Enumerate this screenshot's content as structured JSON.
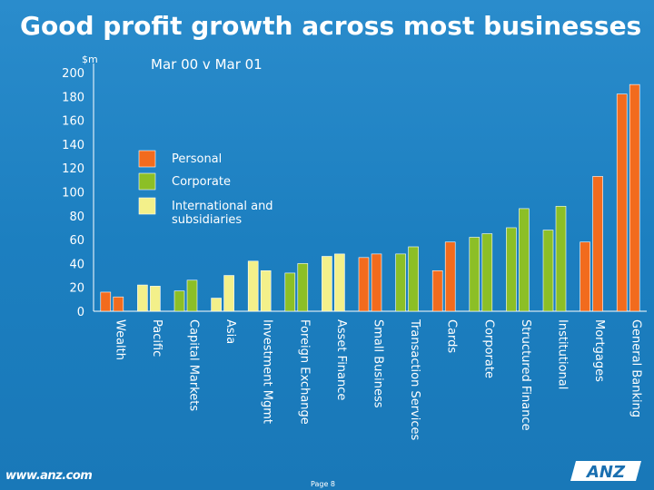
{
  "page": {
    "title": "Good profit growth across most businesses",
    "footer_url": "www.anz.com",
    "page_label": "Page 8",
    "logo_text": "ANZ"
  },
  "chart_data": {
    "type": "bar",
    "title": "Mar 00 v Mar 01",
    "ylabel": "$m",
    "ylim": [
      0,
      200
    ],
    "yticks": [
      0,
      20,
      40,
      60,
      80,
      100,
      120,
      140,
      160,
      180,
      200
    ],
    "grid": false,
    "legend_position": "top-left",
    "legend": [
      {
        "name": "Personal",
        "color": "#f26b1d"
      },
      {
        "name": "Corporate",
        "color": "#8cbf26"
      },
      {
        "name": "International and subsidiaries",
        "color": "#f3f08a"
      }
    ],
    "periods": [
      "Mar 00",
      "Mar 01"
    ],
    "categories": [
      {
        "name": "Wealth",
        "group": "Personal",
        "values": [
          16,
          12
        ]
      },
      {
        "name": "Pacific",
        "group": "International and subsidiaries",
        "values": [
          22,
          21
        ]
      },
      {
        "name": "Capital Markets",
        "group": "Corporate",
        "values": [
          17,
          26
        ]
      },
      {
        "name": "Asia",
        "group": "International and subsidiaries",
        "values": [
          11,
          30
        ]
      },
      {
        "name": "Investment Mgmt",
        "group": "International and subsidiaries",
        "values": [
          42,
          34
        ]
      },
      {
        "name": "Foreign Exchange",
        "group": "Corporate",
        "values": [
          32,
          40
        ]
      },
      {
        "name": "Asset Finance",
        "group": "International and subsidiaries",
        "values": [
          46,
          48
        ]
      },
      {
        "name": "Small Business",
        "group": "Personal",
        "values": [
          45,
          48
        ]
      },
      {
        "name": "Transaction Services",
        "group": "Corporate",
        "values": [
          48,
          54
        ]
      },
      {
        "name": "Cards",
        "group": "Personal",
        "values": [
          34,
          58
        ]
      },
      {
        "name": "Corporate",
        "group": "Corporate",
        "values": [
          62,
          65
        ]
      },
      {
        "name": "Structured Finance",
        "group": "Corporate",
        "values": [
          70,
          86
        ]
      },
      {
        "name": "Institutional",
        "group": "Corporate",
        "values": [
          68,
          88
        ]
      },
      {
        "name": "Mortgages",
        "group": "Personal",
        "values": [
          58,
          113
        ]
      },
      {
        "name": "General Banking",
        "group": "Personal",
        "values": [
          182,
          190
        ]
      }
    ]
  }
}
